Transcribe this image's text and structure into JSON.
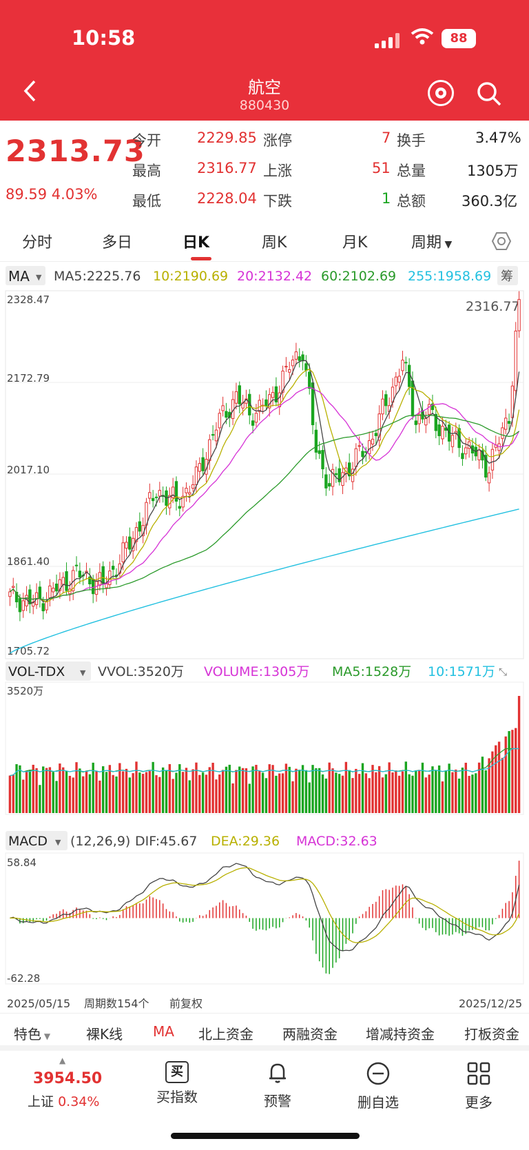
{
  "status_bar": {
    "time": "10:58",
    "battery": "88"
  },
  "header": {
    "title": "航空",
    "code": "880430"
  },
  "quote": {
    "price": "2313.73",
    "change": "89.59 4.03%",
    "fields": [
      {
        "label": "今开",
        "value": "2229.85"
      },
      {
        "label": "涨停",
        "value": "7"
      },
      {
        "label": "换手",
        "value": "3.47%"
      },
      {
        "label": "最高",
        "value": "2316.77"
      },
      {
        "label": "上涨",
        "value": "51"
      },
      {
        "label": "总量",
        "value": "1305万"
      },
      {
        "label": "最低",
        "value": "2228.04"
      },
      {
        "label": "下跌",
        "value": "1"
      },
      {
        "label": "总额",
        "value": "360.3亿"
      }
    ]
  },
  "tabs": [
    "分时",
    "多日",
    "日K",
    "周K",
    "月K",
    "周期"
  ],
  "active_tab": "日K",
  "ma_legend": {
    "label": "MA",
    "ma5": "MA5:2225.76",
    "ma10": "10:2190.69",
    "ma20": "20:2132.42",
    "ma60": "60:2102.69",
    "ma255": "255:1958.69",
    "chip": "筹"
  },
  "vol_legend": {
    "label": "VOL-TDX",
    "vvol": "VVOL:3520万",
    "volume": "VOLUME:1305万",
    "ma5": "MA5:1528万",
    "ma10": "10:1571万"
  },
  "macd_legend": {
    "label": "MACD",
    "params": "(12,26,9)",
    "dif": "DIF:45.67",
    "dea": "DEA:29.36",
    "macd": "MACD:32.63"
  },
  "colors": {
    "up": "#e23232",
    "down": "#1aa520",
    "ma5": "#444444",
    "ma10": "#b8b000",
    "ma20": "#d633d6",
    "ma60": "#2a9a2a",
    "ma255": "#22c0e0"
  },
  "chart_data": [
    {
      "type": "candlestick",
      "title": "航空 日K",
      "y_ticks": [
        "2328.47",
        "2172.79",
        "2017.10",
        "1861.40",
        "1705.72"
      ],
      "ylim": [
        1705.72,
        2328.47
      ],
      "high_annotation": "2316.77",
      "last_close": 2313.73,
      "series": [
        {
          "name": "MA5",
          "last": 2225.76
        },
        {
          "name": "10",
          "last": 2190.69
        },
        {
          "name": "20",
          "last": 2132.42
        },
        {
          "name": "60",
          "last": 2102.69
        },
        {
          "name": "255",
          "last": 1958.69
        }
      ]
    },
    {
      "type": "bar",
      "title": "VOL-TDX",
      "y_ticks": [
        "3520万"
      ],
      "last_volume": "1305万"
    },
    {
      "type": "bar",
      "title": "MACD",
      "y_ticks": [
        "58.84",
        "-62.28"
      ],
      "ylim": [
        -62.28,
        58.84
      ],
      "dif": 45.67,
      "dea": 29.36,
      "macd": 32.63
    }
  ],
  "footer": {
    "start_date": "2025/05/15",
    "count": "周期数154个",
    "adjust": "前复权",
    "end_date": "2025/12/25"
  },
  "bottom_tabs": [
    "特色",
    "裸K线",
    "MA",
    "北上资金",
    "两融资金",
    "增减持资金",
    "打板资金"
  ],
  "index": {
    "value": "3954.50",
    "name": "上证",
    "change": "0.34%"
  },
  "nav": [
    {
      "label": "买指数",
      "icon": "buy-icon",
      "glyph": "买"
    },
    {
      "label": "预警",
      "icon": "bell-icon",
      "glyph": "🔔"
    },
    {
      "label": "删自选",
      "icon": "minus-circle-icon",
      "glyph": "⊖"
    },
    {
      "label": "更多",
      "icon": "grid-icon",
      "glyph": "▦"
    }
  ]
}
